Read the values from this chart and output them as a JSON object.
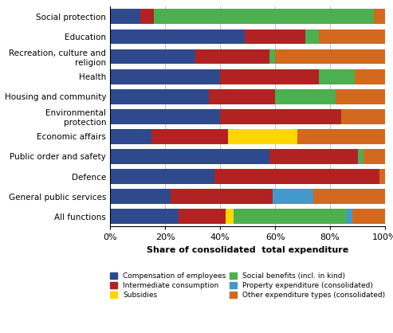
{
  "categories": [
    "All functions",
    "General public services",
    "Defence",
    "Public order and safety",
    "Economic affairs",
    "Environmental\nprotection",
    "Housing and community",
    "Health",
    "Recreation, culture and\nreligion",
    "Education",
    "Social protection"
  ],
  "segments": {
    "Compensation of employees": [
      25,
      22,
      38,
      58,
      15,
      40,
      36,
      40,
      31,
      49,
      11
    ],
    "Intermediate consumption": [
      17,
      37,
      60,
      32,
      28,
      44,
      24,
      36,
      27,
      22,
      5
    ],
    "Subsidies": [
      3,
      0,
      0,
      0,
      25,
      0,
      0,
      0,
      0,
      0,
      0
    ],
    "Social benefits (incl. in kind)": [
      41,
      0,
      0,
      2,
      0,
      0,
      22,
      13,
      2,
      5,
      80
    ],
    "Property expenditure (consolidated)": [
      2,
      15,
      0,
      0,
      0,
      0,
      0,
      0,
      0,
      0,
      0
    ],
    "Other expenditure types (consolidated)": [
      12,
      26,
      2,
      8,
      32,
      16,
      18,
      11,
      40,
      24,
      4
    ]
  },
  "colors": {
    "Compensation of employees": "#2E4A8C",
    "Intermediate consumption": "#B22222",
    "Subsidies": "#FFD700",
    "Social benefits (incl. in kind)": "#4CAF50",
    "Property expenditure (consolidated)": "#4499CC",
    "Other expenditure types (consolidated)": "#D2691E"
  },
  "xlabel": "Share of consolidated  total expenditure",
  "xtick_labels": [
    "0%",
    "20%",
    "40%",
    "60%",
    "80%",
    "100%"
  ],
  "xtick_values": [
    0,
    20,
    40,
    60,
    80,
    100
  ],
  "legend_order": [
    "Compensation of employees",
    "Intermediate consumption",
    "Subsidies",
    "Social benefits (incl. in kind)",
    "Property expenditure (consolidated)",
    "Other expenditure types (consolidated)"
  ]
}
